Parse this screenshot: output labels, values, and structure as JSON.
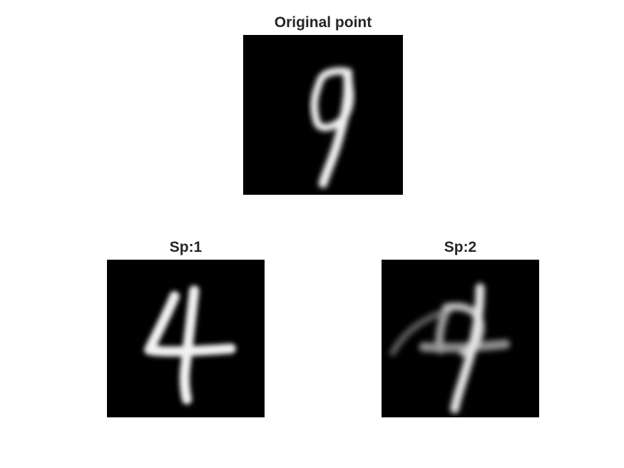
{
  "figure": {
    "panels": [
      {
        "title": "Original point",
        "digit": "9"
      },
      {
        "title": "Sp:1",
        "digit": "4"
      },
      {
        "title": "Sp:2",
        "digit": "4/9 blend"
      }
    ]
  },
  "colors": {
    "background": "#ffffff",
    "image_background": "#000000",
    "stroke": "#f2f2f2",
    "title": "#262626"
  }
}
